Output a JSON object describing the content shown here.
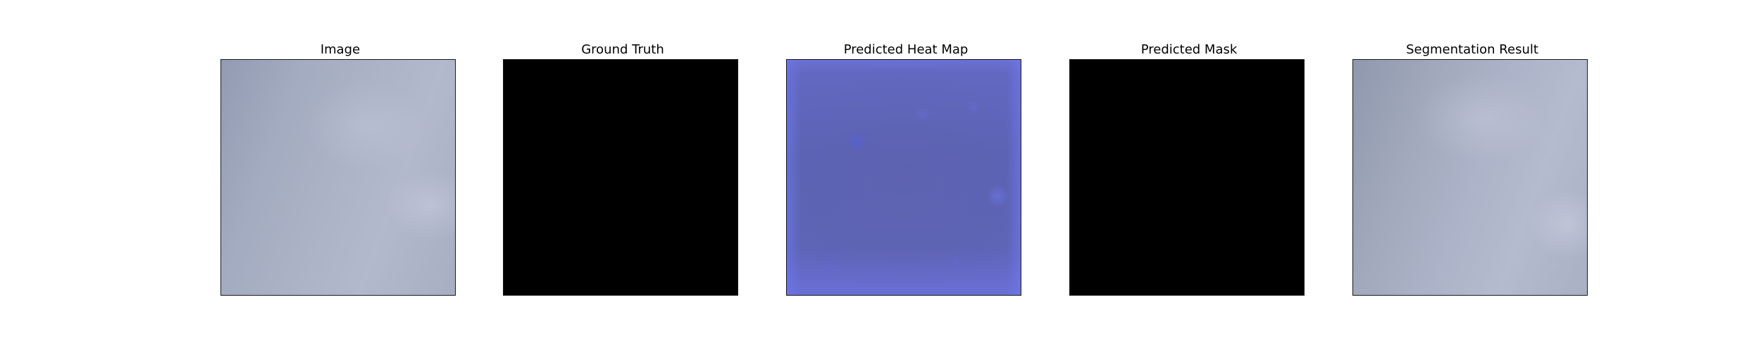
{
  "panels": [
    {
      "title": "Image",
      "content": "image"
    },
    {
      "title": "Ground Truth",
      "content": "mask"
    },
    {
      "title": "Predicted Heat Map",
      "content": "heatmap"
    },
    {
      "title": "Predicted Mask",
      "content": "mask"
    },
    {
      "title": "Segmentation Result",
      "content": "image"
    }
  ],
  "colors": {
    "background": "#ffffff",
    "frame_border": "#1a1a1a",
    "mask_fill": "#000000",
    "image_tone": "#a6adc2",
    "heatmap_tone": "#5f65b8"
  }
}
